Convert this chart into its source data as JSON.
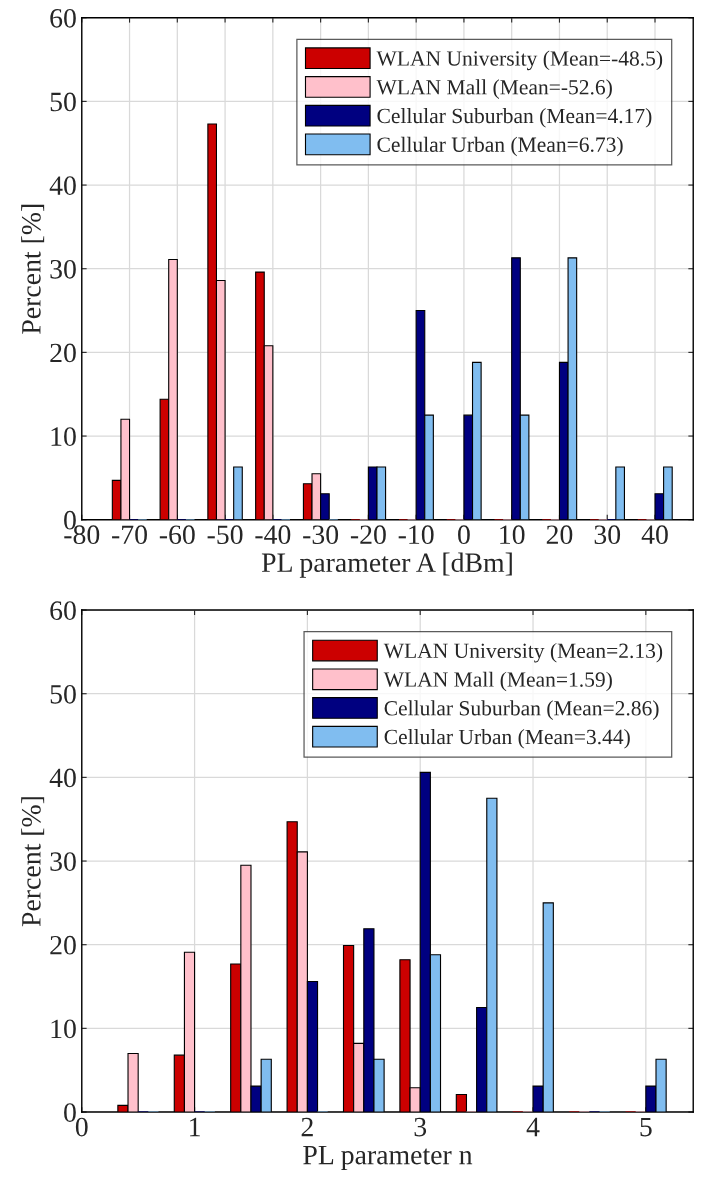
{
  "chart_data": [
    {
      "type": "bar",
      "xlabel": "PL parameter A [dBm]",
      "ylabel": "Percent [%]",
      "x": [
        -70,
        -60,
        -50,
        -40,
        -30,
        -20,
        -10,
        0,
        10,
        20,
        30,
        40
      ],
      "series": [
        {
          "name": "WLAN University (Mean=-48.5)",
          "color": "#cc0000",
          "values": [
            4.7,
            14.4,
            47.3,
            29.6,
            4.3,
            0,
            0,
            0,
            0,
            0,
            0,
            0
          ]
        },
        {
          "name": "WLAN Mall (Mean=-52.6)",
          "color": "#ffc0cb",
          "values": [
            12.0,
            31.1,
            28.6,
            20.8,
            5.5,
            0,
            0,
            0,
            0,
            0,
            0,
            0
          ]
        },
        {
          "name": "Cellular Suburban (Mean=4.17)",
          "color": "#000080",
          "values": [
            0,
            0,
            0,
            0,
            3.1,
            6.3,
            25,
            12.5,
            31.3,
            18.8,
            0,
            3.1
          ]
        },
        {
          "name": "Cellular Urban (Mean=6.73)",
          "color": "#80bdf0",
          "values": [
            0,
            0,
            6.3,
            0,
            0,
            6.3,
            12.5,
            18.8,
            12.5,
            31.3,
            6.3,
            6.3
          ]
        }
      ],
      "xlim": [
        -80,
        48
      ],
      "ylim": [
        0,
        60
      ],
      "xticks": [
        -80,
        -70,
        -60,
        -50,
        -40,
        -30,
        -20,
        -10,
        0,
        10,
        20,
        30,
        40
      ],
      "yticks": [
        0,
        10,
        20,
        30,
        40,
        50,
        60
      ],
      "grid": true,
      "legend": "top right"
    },
    {
      "type": "bar",
      "xlabel": "PL parameter n",
      "ylabel": "Percent [%]",
      "x": [
        0.5,
        1,
        1.5,
        2,
        2.5,
        3,
        3.5,
        4,
        4.5,
        5
      ],
      "series": [
        {
          "name": "WLAN University (Mean=2.13)",
          "color": "#cc0000",
          "values": [
            0.8,
            6.8,
            17.7,
            34.7,
            19.9,
            18.2,
            2.1,
            0,
            0,
            0
          ]
        },
        {
          "name": "WLAN Mall (Mean=1.59)",
          "color": "#ffc0cb",
          "values": [
            7.0,
            19.1,
            29.5,
            31.1,
            8.2,
            2.9,
            0,
            0,
            0,
            0
          ]
        },
        {
          "name": "Cellular Suburban (Mean=2.86)",
          "color": "#000080",
          "values": [
            0,
            0,
            3.1,
            15.6,
            21.9,
            40.6,
            12.5,
            3.1,
            0,
            3.1
          ]
        },
        {
          "name": "Cellular Urban (Mean=3.44)",
          "color": "#80bdf0",
          "values": [
            0,
            0,
            6.3,
            0,
            6.3,
            18.8,
            37.5,
            25,
            0,
            6.3
          ]
        }
      ],
      "xlim": [
        0,
        5.42
      ],
      "ylim": [
        0,
        60
      ],
      "xticks": [
        0,
        1,
        2,
        3,
        4,
        5
      ],
      "yticks": [
        0,
        10,
        20,
        30,
        40,
        50,
        60
      ],
      "grid": true,
      "legend": "top right"
    }
  ]
}
